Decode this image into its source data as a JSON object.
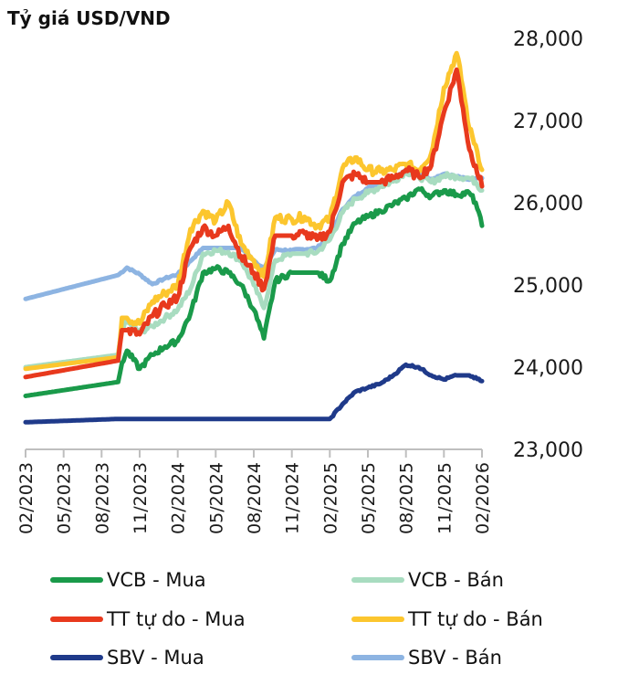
{
  "chart_data": {
    "type": "line",
    "title": "Tỷ giá USD/VND",
    "xlabel": "",
    "ylabel": "",
    "x_range": [
      "02/2023",
      "02/2026"
    ],
    "ylim": [
      23000,
      28000
    ],
    "y_ticks": [
      {
        "value": 23000,
        "label": "23,000"
      },
      {
        "value": 24000,
        "label": "24,000"
      },
      {
        "value": 25000,
        "label": "25,000"
      },
      {
        "value": 26000,
        "label": "26,000"
      },
      {
        "value": 27000,
        "label": "27,000"
      },
      {
        "value": 28000,
        "label": "28,000"
      }
    ],
    "x_ticks": [
      {
        "t": 0,
        "label": "02/2023"
      },
      {
        "t": 3,
        "label": "05/2023"
      },
      {
        "t": 6,
        "label": "08/2023"
      },
      {
        "t": 9,
        "label": "11/2023"
      },
      {
        "t": 12,
        "label": "02/2024"
      },
      {
        "t": 15,
        "label": "05/2024"
      },
      {
        "t": 18,
        "label": "08/2024"
      },
      {
        "t": 21,
        "label": "11/2024"
      },
      {
        "t": 24,
        "label": "02/2025"
      },
      {
        "t": 27,
        "label": "05/2025"
      },
      {
        "t": 30,
        "label": "08/2025"
      },
      {
        "t": 33,
        "label": "11/2025"
      },
      {
        "t": 36,
        "label": "02/2026"
      }
    ],
    "x_unit": "months since 02/2023",
    "series": [
      {
        "name": "SBV - Bán",
        "color": "#8db4e2",
        "points": [
          [
            0,
            24830
          ],
          [
            7.3,
            25120
          ],
          [
            8,
            25210
          ],
          [
            9,
            25130
          ],
          [
            10,
            25010
          ],
          [
            11,
            25080
          ],
          [
            12,
            25130
          ],
          [
            13,
            25290
          ],
          [
            14,
            25450
          ],
          [
            17,
            25450
          ],
          [
            18,
            25300
          ],
          [
            18.8,
            25200
          ],
          [
            19.7,
            25430
          ],
          [
            21,
            25420
          ],
          [
            23,
            25450
          ],
          [
            24,
            25600
          ],
          [
            25,
            25920
          ],
          [
            26,
            26080
          ],
          [
            27,
            26180
          ],
          [
            28,
            26240
          ],
          [
            29,
            26300
          ],
          [
            30,
            26400
          ],
          [
            31,
            26360
          ],
          [
            32,
            26290
          ],
          [
            33,
            26350
          ],
          [
            34,
            26320
          ],
          [
            35,
            26280
          ],
          [
            36,
            26300
          ]
        ]
      },
      {
        "name": "VCB - Bán",
        "color": "#a8dcc0",
        "points": [
          [
            0,
            24000
          ],
          [
            7.3,
            24150
          ],
          [
            7.6,
            24500
          ],
          [
            8,
            24550
          ],
          [
            9,
            24430
          ],
          [
            10,
            24500
          ],
          [
            11,
            24600
          ],
          [
            12,
            24700
          ],
          [
            13,
            24950
          ],
          [
            14,
            25380
          ],
          [
            15,
            25420
          ],
          [
            16,
            25400
          ],
          [
            17,
            25300
          ],
          [
            18,
            25000
          ],
          [
            18.8,
            24720
          ],
          [
            19.7,
            25300
          ],
          [
            21,
            25380
          ],
          [
            22,
            25380
          ],
          [
            23,
            25400
          ],
          [
            24,
            25550
          ],
          [
            25,
            25880
          ],
          [
            26,
            26050
          ],
          [
            27,
            26120
          ],
          [
            28,
            26200
          ],
          [
            29,
            26260
          ],
          [
            30,
            26380
          ],
          [
            31,
            26320
          ],
          [
            32,
            26250
          ],
          [
            33,
            26330
          ],
          [
            34,
            26320
          ],
          [
            35,
            26300
          ],
          [
            35.5,
            26250
          ],
          [
            36,
            26150
          ]
        ]
      },
      {
        "name": "TT tự do - Bán",
        "color": "#fcc62e",
        "points": [
          [
            0,
            23980
          ],
          [
            7.3,
            24120
          ],
          [
            7.6,
            24600
          ],
          [
            8,
            24600
          ],
          [
            9,
            24530
          ],
          [
            10,
            24800
          ],
          [
            11,
            24900
          ],
          [
            12,
            25000
          ],
          [
            13,
            25680
          ],
          [
            14,
            25900
          ],
          [
            15,
            25780
          ],
          [
            16,
            26000
          ],
          [
            17,
            25500
          ],
          [
            18,
            25300
          ],
          [
            18.8,
            25100
          ],
          [
            19.7,
            25820
          ],
          [
            21,
            25800
          ],
          [
            22,
            25830
          ],
          [
            23,
            25720
          ],
          [
            24,
            25800
          ],
          [
            25,
            26420
          ],
          [
            26,
            26550
          ],
          [
            27,
            26400
          ],
          [
            28,
            26380
          ],
          [
            29,
            26400
          ],
          [
            30,
            26470
          ],
          [
            31,
            26400
          ],
          [
            32,
            26600
          ],
          [
            33,
            27400
          ],
          [
            34,
            27820
          ],
          [
            34.5,
            27400
          ],
          [
            35,
            26900
          ],
          [
            35.5,
            26700
          ],
          [
            36,
            26400
          ]
        ]
      },
      {
        "name": "TT tự do - Mua",
        "color": "#e8391d",
        "points": [
          [
            0,
            23880
          ],
          [
            7.3,
            24080
          ],
          [
            7.6,
            24450
          ],
          [
            8,
            24450
          ],
          [
            9,
            24400
          ],
          [
            10,
            24620
          ],
          [
            11,
            24750
          ],
          [
            12,
            24850
          ],
          [
            13,
            25450
          ],
          [
            14,
            25700
          ],
          [
            15,
            25600
          ],
          [
            16,
            25720
          ],
          [
            17,
            25350
          ],
          [
            18,
            25150
          ],
          [
            18.8,
            24950
          ],
          [
            19.7,
            25600
          ],
          [
            21,
            25600
          ],
          [
            22,
            25630
          ],
          [
            23,
            25550
          ],
          [
            24,
            25650
          ],
          [
            25,
            26250
          ],
          [
            26,
            26350
          ],
          [
            27,
            26250
          ],
          [
            28,
            26250
          ],
          [
            29,
            26300
          ],
          [
            30,
            26400
          ],
          [
            31,
            26320
          ],
          [
            32,
            26450
          ],
          [
            33,
            27100
          ],
          [
            34,
            27620
          ],
          [
            34.5,
            27150
          ],
          [
            35,
            26650
          ],
          [
            35.5,
            26450
          ],
          [
            36,
            26200
          ]
        ]
      },
      {
        "name": "VCB - Mua",
        "color": "#1a9a4a",
        "points": [
          [
            0,
            23650
          ],
          [
            7.3,
            23820
          ],
          [
            7.6,
            24050
          ],
          [
            8,
            24200
          ],
          [
            9,
            23980
          ],
          [
            10,
            24150
          ],
          [
            11,
            24250
          ],
          [
            12,
            24320
          ],
          [
            13,
            24650
          ],
          [
            14,
            25150
          ],
          [
            15,
            25200
          ],
          [
            16,
            25150
          ],
          [
            17,
            25000
          ],
          [
            18,
            24700
          ],
          [
            18.8,
            24350
          ],
          [
            19.7,
            25050
          ],
          [
            21,
            25150
          ],
          [
            22,
            25150
          ],
          [
            23,
            25150
          ],
          [
            24,
            25050
          ],
          [
            25,
            25500
          ],
          [
            26,
            25750
          ],
          [
            27,
            25830
          ],
          [
            28,
            25900
          ],
          [
            29,
            25980
          ],
          [
            30,
            26050
          ],
          [
            31,
            26170
          ],
          [
            32,
            26080
          ],
          [
            33,
            26150
          ],
          [
            34,
            26100
          ],
          [
            35,
            26120
          ],
          [
            35.5,
            26000
          ],
          [
            36,
            25720
          ]
        ]
      },
      {
        "name": "SBV - Mua",
        "color": "#1f3a8a",
        "points": [
          [
            0,
            23330
          ],
          [
            7.3,
            23370
          ],
          [
            24,
            23370
          ],
          [
            25,
            23550
          ],
          [
            26,
            23700
          ],
          [
            27,
            23750
          ],
          [
            28,
            23800
          ],
          [
            29,
            23900
          ],
          [
            30,
            24030
          ],
          [
            31,
            24000
          ],
          [
            32,
            23900
          ],
          [
            33,
            23850
          ],
          [
            34,
            23900
          ],
          [
            35,
            23900
          ],
          [
            36,
            23830
          ]
        ]
      }
    ]
  },
  "legend": {
    "items": [
      {
        "label": "VCB - Mua",
        "color": "#1a9a4a"
      },
      {
        "label": "VCB - Bán",
        "color": "#a8dcc0"
      },
      {
        "label": "TT tự do - Mua",
        "color": "#e8391d"
      },
      {
        "label": "TT tự do - Bán",
        "color": "#fcc62e"
      },
      {
        "label": "SBV - Mua",
        "color": "#1f3a8a"
      },
      {
        "label": "SBV - Bán",
        "color": "#8db4e2"
      }
    ]
  }
}
